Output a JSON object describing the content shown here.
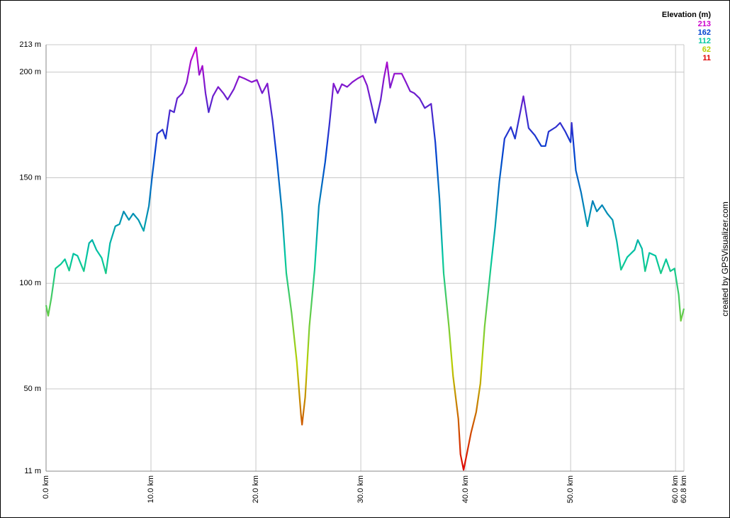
{
  "chart_data": {
    "type": "line",
    "legend_title": "Elevation (m)",
    "legend": [
      {
        "value": 213,
        "color": "#cc00cc"
      },
      {
        "value": 162,
        "color": "#0040d0"
      },
      {
        "value": 112,
        "color": "#00c8a0"
      },
      {
        "value": 62,
        "color": "#b8d000"
      },
      {
        "value": 11,
        "color": "#e00000"
      }
    ],
    "credit": "created by GPSVisualizer.com",
    "grid": true,
    "xlim": [
      0,
      60.8
    ],
    "ylim": [
      11,
      213
    ],
    "xticks": [
      {
        "value": 0,
        "label": "0.0 km"
      },
      {
        "value": 10,
        "label": "10.0 km"
      },
      {
        "value": 20,
        "label": "20.0 km"
      },
      {
        "value": 30,
        "label": "30.0 km"
      },
      {
        "value": 40,
        "label": "40.0 km"
      },
      {
        "value": 50,
        "label": "50.0 km"
      },
      {
        "value": 60,
        "label": "60.0 km"
      },
      {
        "value": 60.8,
        "label": "60.8 km"
      }
    ],
    "yticks": [
      {
        "value": 11,
        "label": "11 m"
      },
      {
        "value": 50,
        "label": "50 m"
      },
      {
        "value": 100,
        "label": "100 m"
      },
      {
        "value": 150,
        "label": "150 m"
      },
      {
        "value": 200,
        "label": "200 m"
      },
      {
        "value": 213,
        "label": "213 m"
      }
    ],
    "x": [
      0,
      0.2,
      0.5,
      0.9,
      1.4,
      1.8,
      2.2,
      2.6,
      3.0,
      3.6,
      4.1,
      4.4,
      4.8,
      5.3,
      5.7,
      6.1,
      6.6,
      7.0,
      7.4,
      7.9,
      8.3,
      8.8,
      9.3,
      9.8,
      10.1,
      10.6,
      11.1,
      11.4,
      11.8,
      12.2,
      12.5,
      13.0,
      13.4,
      13.8,
      14.3,
      14.6,
      14.9,
      15.2,
      15.5,
      15.9,
      16.4,
      16.9,
      17.3,
      17.9,
      18.4,
      18.9,
      19.6,
      20.1,
      20.6,
      21.1,
      21.6,
      22.0,
      22.5,
      22.9,
      23.4,
      23.9,
      24.3,
      24.4,
      24.7,
      25.1,
      25.6,
      26.0,
      26.6,
      27.0,
      27.4,
      27.8,
      28.2,
      28.7,
      29.2,
      29.7,
      30.2,
      30.6,
      31.0,
      31.4,
      31.9,
      32.2,
      32.5,
      32.8,
      33.2,
      33.9,
      34.3,
      34.7,
      35.1,
      35.6,
      36.1,
      36.7,
      37.1,
      37.5,
      37.9,
      38.4,
      38.8,
      39.3,
      39.5,
      39.8,
      40.1,
      40.5,
      41.0,
      41.4,
      41.8,
      42.4,
      42.8,
      43.2,
      43.7,
      44.3,
      44.7,
      45.1,
      45.5,
      46.0,
      46.6,
      47.2,
      47.6,
      47.9,
      48.6,
      49.0,
      49.5,
      50.0,
      50.1,
      50.5,
      51.0,
      51.6,
      52.1,
      52.5,
      53.0,
      53.5,
      54.0,
      54.4,
      54.8,
      55.4,
      56.1,
      56.4,
      56.8,
      57.1,
      57.5,
      58.1,
      58.6,
      59.1,
      59.5,
      59.9,
      60.3,
      60.5,
      60.8
    ],
    "values": [
      89.6,
      84.6,
      93,
      107,
      109,
      111.4,
      106,
      114,
      113,
      105.7,
      119,
      120.5,
      115.8,
      112,
      104.7,
      119,
      127,
      128,
      134,
      130,
      133,
      130,
      124.8,
      136.6,
      150,
      170.8,
      172.8,
      168.5,
      182,
      181,
      187.6,
      190,
      195,
      205.4,
      211.7,
      198.7,
      203,
      190,
      181,
      188.6,
      193,
      190,
      187,
      192,
      198,
      197,
      195.3,
      196.3,
      190,
      194.6,
      176.8,
      158.4,
      133,
      104.7,
      86,
      62.8,
      37.6,
      33,
      46,
      79.5,
      106.4,
      136.6,
      157.4,
      175,
      194.6,
      190,
      194.3,
      193,
      195.3,
      197,
      198.3,
      193.6,
      185,
      176,
      187,
      197,
      204.7,
      192.6,
      199.3,
      199.3,
      195.3,
      191,
      190,
      187.6,
      183,
      185,
      166.8,
      140,
      104.7,
      79.5,
      56,
      35.8,
      19,
      11.6,
      19,
      29,
      39,
      52.5,
      79.5,
      108,
      126.5,
      148,
      168.5,
      174,
      168.5,
      178.5,
      188.6,
      173.5,
      170,
      165,
      165,
      171.8,
      174,
      176,
      171.8,
      166.8,
      176,
      153.4,
      143,
      127,
      139,
      134,
      137,
      133,
      130,
      119.8,
      106.4,
      112.4,
      115.8,
      120.5,
      116.4,
      105.7,
      114.4,
      113,
      104.7,
      111.4,
      105.7,
      107,
      94.6,
      82.2,
      88
    ]
  }
}
